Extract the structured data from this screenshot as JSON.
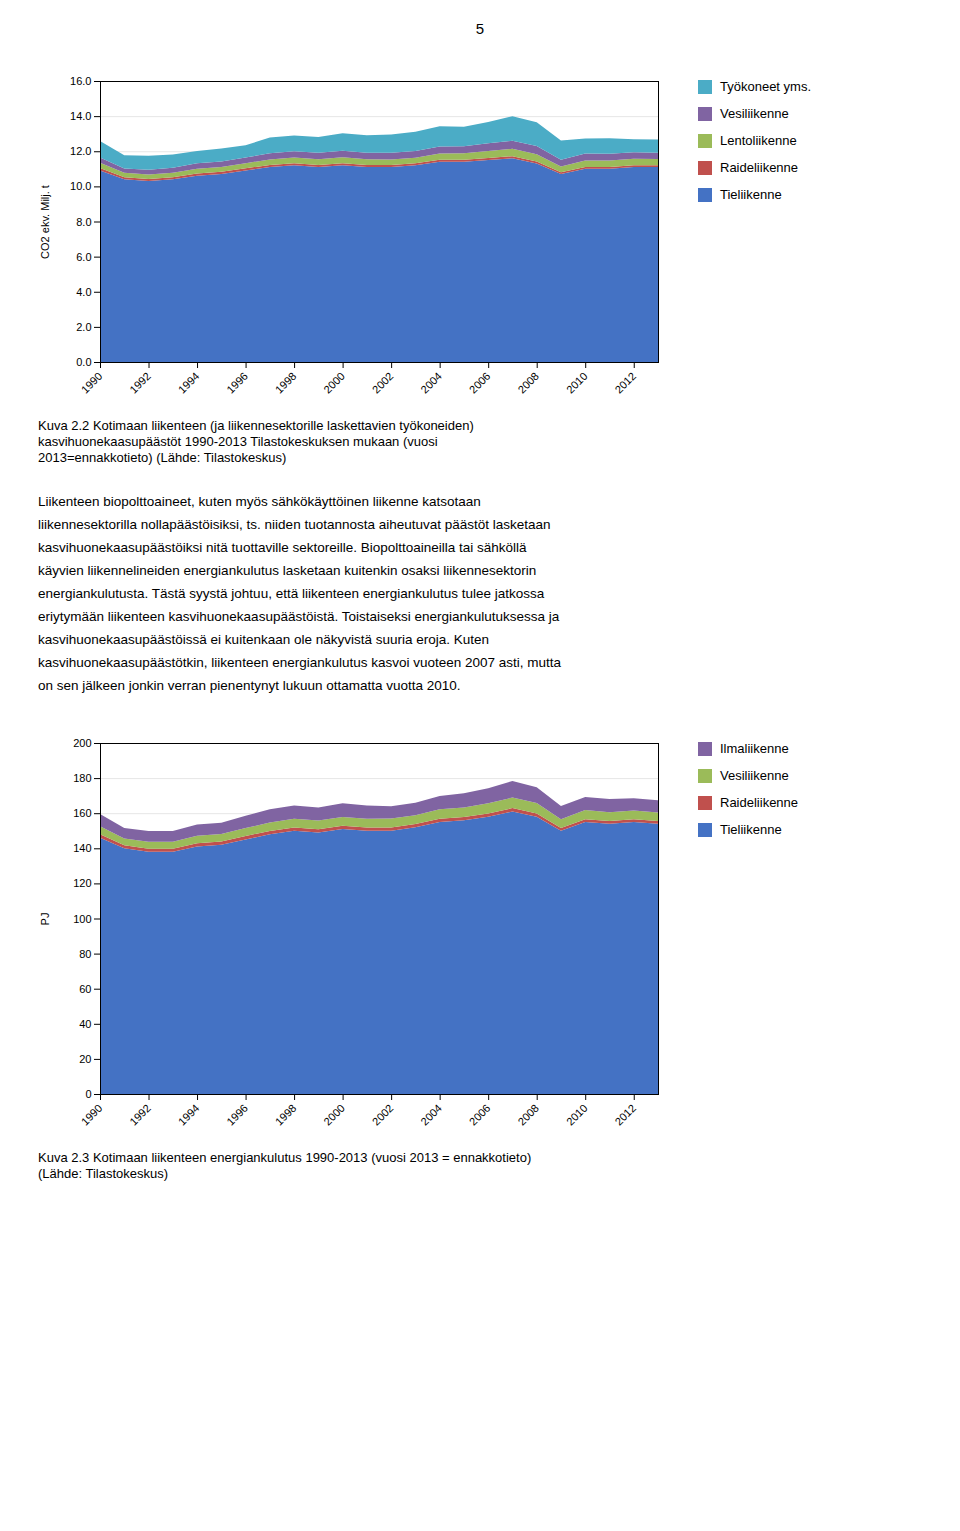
{
  "page_number": "5",
  "body_text": [
    "Liikenteen biopolttoaineet, kuten myös sähkökäyttöinen liikenne katsotaan",
    "liikennesektorilla nollapäästöisiksi, ts. niiden tuotannosta aiheutuvat päästöt lasketaan",
    "kasvihuonekaasupäästöiksi nitä tuottaville sektoreille. Biopolttoaineilla tai sähköllä",
    "käyvien liikennelineiden energiankulutus lasketaan kuitenkin osaksi liikennesektorin",
    "energiankulutusta. Tästä syystä johtuu, että liikenteen energiankulutus tulee jatkossa",
    "eriytymään liikenteen kasvihuonekaasupäästöistä. Toistaiseksi energiankulutuksessa ja",
    "kasvihuonekaasupäästöissä ei kuitenkaan ole näkyvistä suuria eroja. Kuten",
    "kasvihuonekaasupäästötkin, liikenteen energiankulutus kasvoi vuoteen 2007 asti, mutta",
    "on sen jälkeen jonkin verran pienentynyt lukuun ottamatta vuotta 2010."
  ],
  "chart_data": [
    {
      "type": "area",
      "stacked": true,
      "caption": [
        "Kuva 2.2 Kotimaan liikenteen (ja liikennesektorille laskettavien työkoneiden)",
        "kasvihuonekaasupäästöt 1990-2013  Tilastokeskuksen mukaan (vuosi",
        "2013=ennakkotieto) (Lähde: Tilastokeskus)"
      ],
      "x": [
        1990,
        1991,
        1992,
        1993,
        1994,
        1995,
        1996,
        1997,
        1998,
        1999,
        2000,
        2001,
        2002,
        2003,
        2004,
        2005,
        2006,
        2007,
        2008,
        2009,
        2010,
        2011,
        2012,
        2013
      ],
      "xlim": [
        1990,
        2013
      ],
      "xticks": [
        1990,
        1992,
        1994,
        1996,
        1998,
        2000,
        2002,
        2004,
        2006,
        2008,
        2010,
        2012
      ],
      "ylabel": "CO2 ekv. Milj. t",
      "ylim": [
        0,
        16
      ],
      "yticks": [
        {
          "value": 0,
          "label": "0.0"
        },
        {
          "value": 2,
          "label": "2.0"
        },
        {
          "value": 4,
          "label": "4.0"
        },
        {
          "value": 6,
          "label": "6.0"
        },
        {
          "value": 8,
          "label": "8.0"
        },
        {
          "value": 10,
          "label": "10.0"
        },
        {
          "value": 12,
          "label": "12.0"
        },
        {
          "value": 14,
          "label": "14.0"
        },
        {
          "value": 16,
          "label": "16.0"
        }
      ],
      "grid": true,
      "legend": "right",
      "series": [
        {
          "name": "Tieliikenne",
          "color": "#4472C4",
          "values": [
            10.9,
            10.4,
            10.3,
            10.4,
            10.6,
            10.7,
            10.9,
            11.1,
            11.2,
            11.1,
            11.2,
            11.1,
            11.1,
            11.2,
            11.4,
            11.4,
            11.5,
            11.6,
            11.3,
            10.7,
            11.0,
            11.0,
            11.1,
            11.1
          ]
        },
        {
          "name": "Raideliikenne",
          "color": "#C0504D",
          "values": [
            0.14,
            0.12,
            0.12,
            0.12,
            0.13,
            0.13,
            0.13,
            0.12,
            0.12,
            0.12,
            0.12,
            0.12,
            0.12,
            0.12,
            0.12,
            0.12,
            0.12,
            0.12,
            0.11,
            0.1,
            0.1,
            0.1,
            0.1,
            0.1
          ]
        },
        {
          "name": "Lentoliikenne",
          "color": "#9BBB59",
          "values": [
            0.3,
            0.25,
            0.25,
            0.26,
            0.28,
            0.28,
            0.29,
            0.31,
            0.32,
            0.33,
            0.34,
            0.32,
            0.31,
            0.31,
            0.35,
            0.37,
            0.4,
            0.42,
            0.42,
            0.33,
            0.38,
            0.38,
            0.37,
            0.36
          ]
        },
        {
          "name": "Vesiliikenne",
          "color": "#8064A2",
          "values": [
            0.3,
            0.25,
            0.27,
            0.28,
            0.3,
            0.3,
            0.32,
            0.35,
            0.36,
            0.36,
            0.37,
            0.37,
            0.38,
            0.38,
            0.4,
            0.4,
            0.44,
            0.46,
            0.47,
            0.38,
            0.39,
            0.38,
            0.37,
            0.36
          ]
        },
        {
          "name": "Työkoneet yms.",
          "color": "#4BACC6",
          "values": [
            0.95,
            0.75,
            0.8,
            0.75,
            0.7,
            0.75,
            0.7,
            0.9,
            0.9,
            0.9,
            1.0,
            1.0,
            1.05,
            1.1,
            1.15,
            1.1,
            1.2,
            1.4,
            1.35,
            1.1,
            0.85,
            0.88,
            0.75,
            0.75
          ]
        }
      ]
    },
    {
      "type": "area",
      "stacked": true,
      "caption": [
        "Kuva 2.3 Kotimaan liikenteen energiankulutus 1990-2013 (vuosi 2013 = ennakkotieto)",
        "(Lähde: Tilastokeskus)"
      ],
      "x": [
        1990,
        1991,
        1992,
        1993,
        1994,
        1995,
        1996,
        1997,
        1998,
        1999,
        2000,
        2001,
        2002,
        2003,
        2004,
        2005,
        2006,
        2007,
        2008,
        2009,
        2010,
        2011,
        2012,
        2013
      ],
      "xlim": [
        1990,
        2013
      ],
      "xticks": [
        1990,
        1992,
        1994,
        1996,
        1998,
        2000,
        2002,
        2004,
        2006,
        2008,
        2010,
        2012
      ],
      "ylabel": "PJ",
      "ylim": [
        0,
        200
      ],
      "yticks": [
        0,
        20,
        40,
        60,
        80,
        100,
        120,
        140,
        160,
        180,
        200
      ],
      "grid": true,
      "legend": "right",
      "series": [
        {
          "name": "Tieliikenne",
          "color": "#4472C4",
          "values": [
            146,
            140,
            138,
            138,
            141,
            142,
            145,
            148,
            150,
            149,
            151,
            150,
            150,
            152,
            155,
            156,
            158,
            161,
            158,
            150,
            155,
            154,
            155,
            154
          ]
        },
        {
          "name": "Raideliikenne",
          "color": "#C0504D",
          "values": [
            2.0,
            1.8,
            1.8,
            1.8,
            1.9,
            1.9,
            2.0,
            1.9,
            1.9,
            1.9,
            1.9,
            1.9,
            1.9,
            1.9,
            1.9,
            1.9,
            1.9,
            1.9,
            1.8,
            1.6,
            1.6,
            1.6,
            1.6,
            1.6
          ]
        },
        {
          "name": "Vesiliikenne",
          "color": "#9BBB59",
          "values": [
            4.5,
            3.8,
            4.0,
            4.0,
            4.2,
            4.2,
            4.5,
            4.8,
            5.0,
            4.9,
            5.0,
            5.0,
            5.1,
            5.0,
            5.4,
            5.4,
            5.8,
            6.0,
            6.0,
            5.0,
            5.2,
            5.0,
            4.9,
            4.8
          ]
        },
        {
          "name": "Ilmaliikenne",
          "color": "#8064A2",
          "values": [
            7.0,
            6.0,
            6.0,
            6.0,
            6.5,
            6.5,
            7.0,
            7.5,
            7.5,
            7.5,
            7.8,
            7.5,
            7.0,
            7.0,
            7.5,
            8.0,
            8.5,
            9.5,
            9.0,
            7.5,
            7.5,
            7.5,
            7.0,
            7.0
          ]
        }
      ]
    }
  ]
}
